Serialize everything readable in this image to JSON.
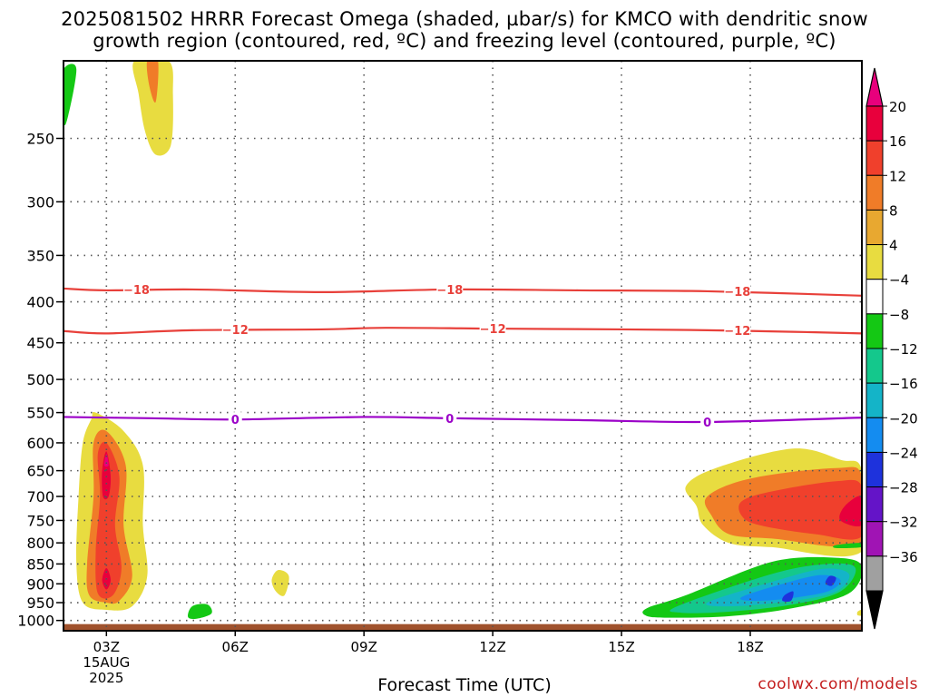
{
  "title_line1": "2025081502 HRRR Forecast Omega (shaded, µbar/s) for KMCO with dendritic snow",
  "title_line2": "growth region (contoured, red, ºC) and freezing level (contoured, purple, ºC)",
  "x_axis_title": "Forecast Time (UTC)",
  "credit": "coolwx.com/models",
  "colors": {
    "ground": "#a0522d",
    "dsgz_contour": "#e8403a",
    "freezing_contour": "#9b00c8",
    "grid": "#555555"
  },
  "chart_data": {
    "type": "heatmap",
    "title": "2025081502 HRRR Forecast Omega (shaded, µbar/s) for KMCO with dendritic snow growth region (contoured, red, ºC) and freezing level (contoured, purple, ºC)",
    "xlabel": "Forecast Time (UTC)",
    "ylabel": "",
    "x_range_hours": [
      2,
      20.6
    ],
    "y_range_hpa": [
      1030,
      200
    ],
    "y_scale": "log",
    "grid": true,
    "x_ticks": [
      {
        "hour": 3,
        "label": "03Z",
        "sub1": "15AUG",
        "sub2": "2025"
      },
      {
        "hour": 6,
        "label": "06Z",
        "sub1": "",
        "sub2": ""
      },
      {
        "hour": 9,
        "label": "09Z",
        "sub1": "",
        "sub2": ""
      },
      {
        "hour": 12,
        "label": "12Z",
        "sub1": "",
        "sub2": ""
      },
      {
        "hour": 15,
        "label": "15Z",
        "sub1": "",
        "sub2": ""
      },
      {
        "hour": 18,
        "label": "18Z",
        "sub1": "",
        "sub2": ""
      }
    ],
    "y_ticks": [
      250,
      300,
      350,
      400,
      450,
      500,
      550,
      600,
      650,
      700,
      750,
      800,
      850,
      900,
      950,
      1000
    ],
    "colorbar": {
      "levels": [
        -36,
        -32,
        -28,
        -24,
        -20,
        -16,
        -12,
        -8,
        -4,
        4,
        8,
        12,
        16,
        20
      ],
      "labels": [
        "20",
        "16",
        "12",
        "8",
        "4",
        "−4",
        "−8",
        "−12",
        "−16",
        "−20",
        "−24",
        "−28",
        "−32",
        "−36"
      ],
      "colors_top_to_bottom": [
        "#e8003c",
        "#f0402c",
        "#f07c28",
        "#e8a830",
        "#e8dc40",
        "#ffffff",
        "#14c814",
        "#14c88c",
        "#14b4c8",
        "#148cf0",
        "#1e32dc",
        "#6414c8",
        "#a014b4",
        "#a0a0a0"
      ],
      "top_arrow_color": "#e8007c",
      "bottom_arrow_color": "#000000"
    },
    "contours": [
      {
        "name": "-18",
        "color": "#e8403a",
        "points": [
          [
            2,
            385
          ],
          [
            3,
            387
          ],
          [
            5,
            386
          ],
          [
            8,
            389
          ],
          [
            11,
            386
          ],
          [
            14,
            387
          ],
          [
            17,
            388
          ],
          [
            20.6,
            393
          ]
        ],
        "labels": [
          [
            3.7,
            386
          ],
          [
            11,
            386
          ],
          [
            17.7,
            388
          ]
        ]
      },
      {
        "name": "-12",
        "color": "#e8403a",
        "points": [
          [
            2,
            435
          ],
          [
            3,
            438
          ],
          [
            5,
            434
          ],
          [
            8,
            433
          ],
          [
            9.5,
            431
          ],
          [
            12,
            432
          ],
          [
            15,
            433
          ],
          [
            17,
            434
          ],
          [
            19,
            436
          ],
          [
            20.6,
            438
          ]
        ],
        "labels": [
          [
            6,
            433
          ],
          [
            12,
            432
          ],
          [
            17.7,
            434
          ]
        ]
      },
      {
        "name": "0",
        "color": "#9b00c8",
        "points": [
          [
            2,
            557
          ],
          [
            4,
            559
          ],
          [
            6,
            561
          ],
          [
            9,
            557
          ],
          [
            11,
            559
          ],
          [
            14,
            562
          ],
          [
            17,
            565
          ],
          [
            20.6,
            558
          ]
        ],
        "labels": [
          [
            6,
            561
          ],
          [
            11,
            559
          ],
          [
            17,
            565
          ]
        ]
      }
    ],
    "omega_regions": [
      {
        "value": 4,
        "points": [
          [
            2.75,
            550
          ],
          [
            3.4,
            580
          ],
          [
            3.85,
            640
          ],
          [
            3.85,
            760
          ],
          [
            3.95,
            880
          ],
          [
            3.6,
            960
          ],
          [
            3.0,
            970
          ],
          [
            2.45,
            950
          ],
          [
            2.3,
            850
          ],
          [
            2.35,
            700
          ],
          [
            2.45,
            600
          ],
          [
            2.65,
            560
          ]
        ]
      },
      {
        "value": 8,
        "points": [
          [
            3.0,
            580
          ],
          [
            3.45,
            640
          ],
          [
            3.4,
            760
          ],
          [
            3.6,
            880
          ],
          [
            3.3,
            945
          ],
          [
            3.0,
            950
          ],
          [
            2.6,
            930
          ],
          [
            2.55,
            850
          ],
          [
            2.7,
            700
          ],
          [
            2.7,
            600
          ]
        ]
      },
      {
        "value": 12,
        "points": [
          [
            3.0,
            600
          ],
          [
            3.3,
            660
          ],
          [
            3.2,
            760
          ],
          [
            3.35,
            860
          ],
          [
            3.15,
            930
          ],
          [
            2.8,
            925
          ],
          [
            2.75,
            820
          ],
          [
            2.85,
            700
          ],
          [
            2.8,
            620
          ]
        ]
      },
      {
        "value": 16,
        "points": [
          [
            3.0,
            615
          ],
          [
            3.1,
            660
          ],
          [
            3.05,
            700
          ],
          [
            2.92,
            700
          ],
          [
            2.9,
            650
          ]
        ]
      },
      {
        "value": 16,
        "points": [
          [
            3.0,
            860
          ],
          [
            3.1,
            890
          ],
          [
            3.0,
            915
          ],
          [
            2.9,
            890
          ]
        ]
      },
      {
        "value": 20,
        "points": [
          [
            3.0,
            620
          ],
          [
            3.05,
            640
          ],
          [
            2.95,
            640
          ]
        ]
      },
      {
        "value": 4,
        "points": [
          [
            3.65,
            200
          ],
          [
            4.45,
            200
          ],
          [
            4.55,
            220
          ],
          [
            4.5,
            255
          ],
          [
            4.15,
            262
          ],
          [
            3.9,
            245
          ],
          [
            3.75,
            220
          ]
        ]
      },
      {
        "value": 8,
        "points": [
          [
            3.95,
            200
          ],
          [
            4.2,
            200
          ],
          [
            4.15,
            225
          ],
          [
            4.0,
            215
          ]
        ]
      },
      {
        "value": 4,
        "points": [
          [
            7.0,
            865
          ],
          [
            7.25,
            880
          ],
          [
            7.15,
            930
          ],
          [
            6.95,
            920
          ],
          [
            6.85,
            890
          ]
        ]
      },
      {
        "value": 4,
        "points": [
          [
            16.5,
            680
          ],
          [
            17.2,
            645
          ],
          [
            19.0,
            610
          ],
          [
            20.1,
            630
          ],
          [
            20.6,
            650
          ],
          [
            20.6,
            820
          ],
          [
            18.5,
            810
          ],
          [
            17.5,
            800
          ],
          [
            16.9,
            760
          ],
          [
            16.75,
            720
          ]
        ]
      },
      {
        "value": 8,
        "points": [
          [
            17.0,
            700
          ],
          [
            18.0,
            665
          ],
          [
            20.0,
            645
          ],
          [
            20.6,
            660
          ],
          [
            20.6,
            800
          ],
          [
            18.5,
            790
          ],
          [
            17.5,
            780
          ],
          [
            17.1,
            740
          ]
        ]
      },
      {
        "value": 12,
        "points": [
          [
            17.8,
            710
          ],
          [
            18.5,
            690
          ],
          [
            20.0,
            670
          ],
          [
            20.6,
            680
          ],
          [
            20.6,
            785
          ],
          [
            19.5,
            780
          ],
          [
            18.2,
            760
          ],
          [
            17.8,
            740
          ]
        ]
      },
      {
        "value": 16,
        "points": [
          [
            20.2,
            720
          ],
          [
            20.6,
            700
          ],
          [
            20.6,
            760
          ],
          [
            20.1,
            750
          ]
        ]
      },
      {
        "value": -4,
        "points": [
          [
            15.6,
            965
          ],
          [
            16.5,
            930
          ],
          [
            18.5,
            845
          ],
          [
            20.0,
            835
          ],
          [
            20.6,
            855
          ],
          [
            20.3,
            925
          ],
          [
            19.0,
            965
          ],
          [
            17.5,
            988
          ],
          [
            16.0,
            992
          ],
          [
            15.55,
            985
          ]
        ]
      },
      {
        "value": -8,
        "points": [
          [
            16.3,
            960
          ],
          [
            18.5,
            875
          ],
          [
            19.8,
            850
          ],
          [
            20.45,
            860
          ],
          [
            20.1,
            920
          ],
          [
            19.0,
            955
          ],
          [
            17.5,
            975
          ],
          [
            16.4,
            978
          ]
        ]
      },
      {
        "value": -12,
        "points": [
          [
            17.0,
            950
          ],
          [
            18.5,
            895
          ],
          [
            19.7,
            862
          ],
          [
            20.3,
            875
          ],
          [
            20.0,
            920
          ],
          [
            19.0,
            945
          ],
          [
            17.6,
            960
          ]
        ]
      },
      {
        "value": -16,
        "points": [
          [
            17.8,
            935
          ],
          [
            18.6,
            905
          ],
          [
            19.6,
            878
          ],
          [
            20.1,
            890
          ],
          [
            19.8,
            920
          ],
          [
            18.8,
            940
          ],
          [
            18.0,
            945
          ]
        ]
      },
      {
        "value": -20,
        "points": [
          [
            18.8,
            930
          ],
          [
            19.0,
            920
          ],
          [
            18.95,
            945
          ],
          [
            18.75,
            945
          ]
        ]
      },
      {
        "value": -20,
        "points": [
          [
            19.85,
            880
          ],
          [
            20.0,
            885
          ],
          [
            19.9,
            905
          ],
          [
            19.75,
            898
          ]
        ]
      },
      {
        "value": -4,
        "points": [
          [
            20.0,
            805
          ],
          [
            20.6,
            800
          ],
          [
            20.6,
            810
          ],
          [
            20.0,
            812
          ]
        ]
      },
      {
        "value": -4,
        "points": [
          [
            2.0,
            205
          ],
          [
            2.3,
            205
          ],
          [
            2.05,
            240
          ],
          [
            1.95,
            225
          ]
        ]
      },
      {
        "value": -4,
        "points": [
          [
            5.0,
            960
          ],
          [
            5.35,
            955
          ],
          [
            5.45,
            980
          ],
          [
            5.1,
            995
          ],
          [
            4.9,
            990
          ]
        ]
      },
      {
        "value": 4,
        "points": [
          [
            20.5,
            975
          ],
          [
            20.6,
            970
          ],
          [
            20.6,
            985
          ],
          [
            20.5,
            985
          ]
        ]
      }
    ]
  }
}
